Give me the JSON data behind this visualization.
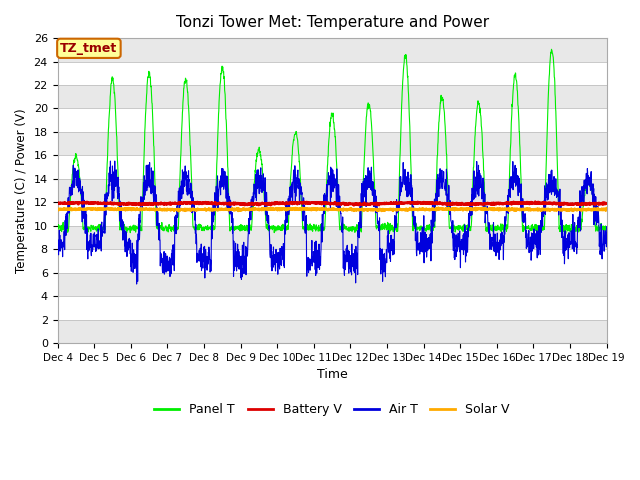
{
  "title": "Tonzi Tower Met: Temperature and Power",
  "xlabel": "Time",
  "ylabel": "Temperature (C) / Power (V)",
  "ylim": [
    0,
    26
  ],
  "yticks": [
    0,
    2,
    4,
    6,
    8,
    10,
    12,
    14,
    16,
    18,
    20,
    22,
    24,
    26
  ],
  "x_labels": [
    "Dec 4",
    "Dec 5",
    "Dec 6",
    "Dec 7",
    "Dec 8",
    "Dec 9",
    "Dec 10",
    "Dec 11",
    "Dec 12",
    "Dec 13",
    "Dec 14",
    "Dec 15",
    "Dec 16",
    "Dec 17",
    "Dec 18",
    "Dec 19"
  ],
  "legend_entries": [
    "Panel T",
    "Battery V",
    "Air T",
    "Solar V"
  ],
  "annotation_text": "TZ_tmet",
  "annotation_bg": "#ffff99",
  "annotation_border": "#cc6600",
  "annotation_text_color": "#990000",
  "plot_bg": "#ffffff",
  "stripe_color": "#e8e8e8",
  "panel_color": "#00ee00",
  "battery_color": "#dd0000",
  "air_color": "#0000dd",
  "solar_color": "#ffaa00",
  "battery_value": 11.9,
  "solar_value": 11.4,
  "n_days": 15,
  "points_per_day": 144
}
